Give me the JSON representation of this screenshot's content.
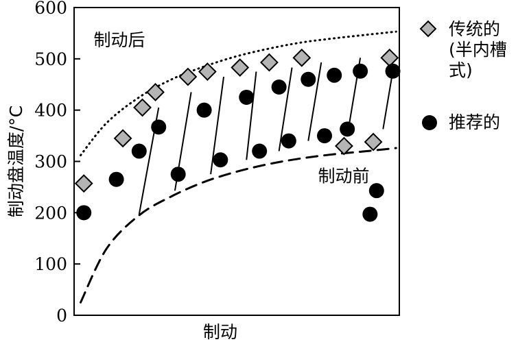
{
  "chart_data": {
    "type": "scatter",
    "title": "",
    "xlabel": "制动",
    "ylabel": "制动盘温度/°C",
    "ylim": [
      0,
      600
    ],
    "yticks": [
      0,
      100,
      200,
      300,
      400,
      500,
      600
    ],
    "xlim": [
      0,
      100
    ],
    "grid": false,
    "legend_position": "right",
    "series": [
      {
        "name": "传统的",
        "name_sub": "(半内槽式)",
        "marker": "diamond",
        "color": "#b4b4b4",
        "x": [
          3,
          15,
          21,
          25,
          35,
          41,
          51,
          60,
          70,
          83,
          92,
          97
        ],
        "y": [
          257,
          345,
          405,
          435,
          465,
          475,
          483,
          493,
          502,
          330,
          338,
          502
        ]
      },
      {
        "name": "推荐的",
        "marker": "circle",
        "color": "#000000",
        "x": [
          3,
          13,
          20,
          26,
          32,
          40,
          45,
          53,
          57,
          63,
          66,
          72,
          77,
          80,
          84,
          88,
          91,
          93,
          98
        ],
        "y": [
          200,
          265,
          320,
          367,
          275,
          400,
          303,
          425,
          320,
          445,
          340,
          460,
          350,
          468,
          363,
          476,
          197,
          243,
          476
        ]
      }
    ],
    "heating_lines": [
      {
        "x": [
          20,
          26
        ],
        "y": [
          197,
          405
        ]
      },
      {
        "x": [
          31,
          36
        ],
        "y": [
          243,
          435
        ]
      },
      {
        "x": [
          42,
          46
        ],
        "y": [
          275,
          465
        ]
      },
      {
        "x": [
          53,
          56
        ],
        "y": [
          303,
          475
        ]
      },
      {
        "x": [
          63,
          67
        ],
        "y": [
          320,
          483
        ]
      },
      {
        "x": [
          72,
          76
        ],
        "y": [
          340,
          493
        ]
      },
      {
        "x": [
          84,
          88
        ],
        "y": [
          350,
          502
        ]
      },
      {
        "x": [
          95,
          98
        ],
        "y": [
          363,
          476
        ]
      }
    ],
    "curves": [
      {
        "name": "制动后",
        "style": "dotted",
        "x": [
          2,
          10,
          20,
          30,
          40,
          50,
          60,
          70,
          80,
          90,
          99
        ],
        "y": [
          312,
          375,
          425,
          460,
          485,
          505,
          520,
          532,
          540,
          547,
          553
        ]
      },
      {
        "name": "制动前",
        "style": "dashed",
        "x": [
          2,
          10,
          20,
          30,
          40,
          50,
          60,
          70,
          80,
          90,
          99
        ],
        "y": [
          25,
          130,
          195,
          232,
          260,
          280,
          295,
          306,
          314,
          320,
          326
        ]
      }
    ],
    "annotations": [
      {
        "text": "制动后",
        "x": 6,
        "y": 525
      },
      {
        "text": "制动前",
        "x": 75,
        "y": 260
      }
    ]
  }
}
